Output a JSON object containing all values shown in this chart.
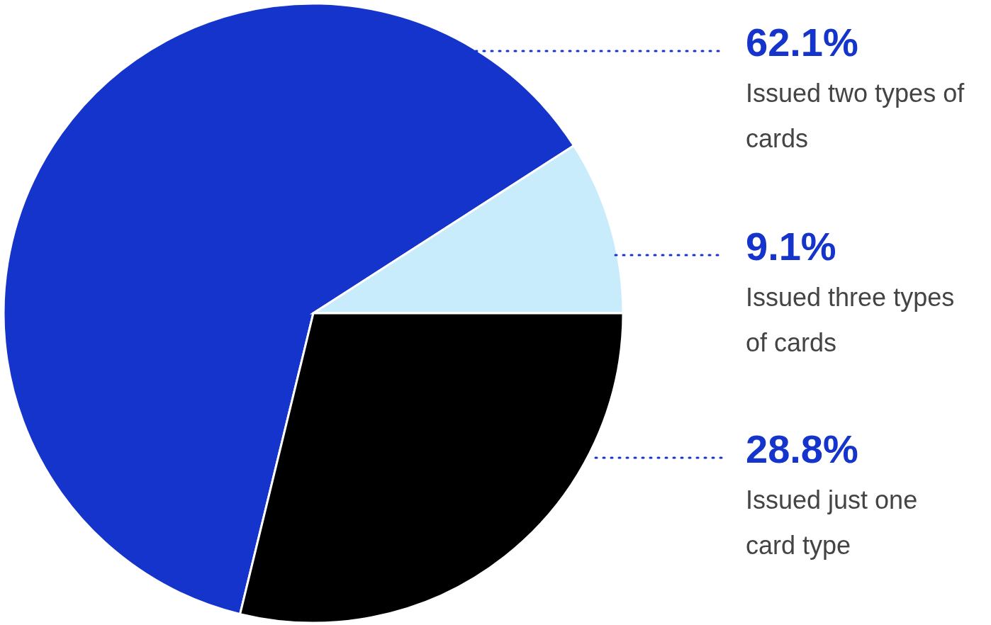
{
  "chart_data": {
    "type": "pie",
    "categories": [
      "Issued two types of cards",
      "Issued three types of cards",
      "Issued just one card type"
    ],
    "values": [
      62.1,
      9.1,
      28.8
    ],
    "colors": [
      "#1534cc",
      "#c8ecfc",
      "#000000"
    ],
    "value_labels": [
      "62.1%",
      "9.1%",
      "28.8%"
    ]
  }
}
